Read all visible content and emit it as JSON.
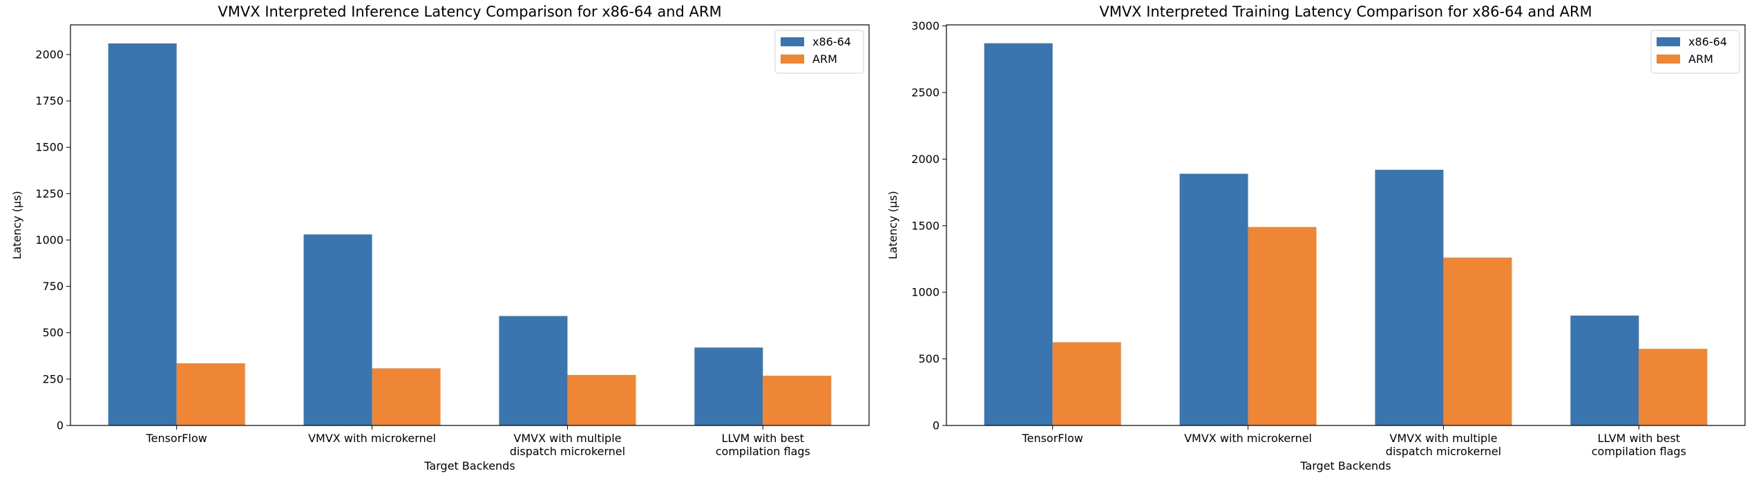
{
  "colors": {
    "x86": "#3a75b0",
    "arm": "#ef8636"
  },
  "chart_data": [
    {
      "type": "bar",
      "title": "VMVX Interpreted Inference Latency Comparison for x86-64 and ARM",
      "xlabel": "Target Backends",
      "ylabel": "Latency (μs)",
      "categories": [
        [
          "TensorFlow"
        ],
        [
          "VMVX with microkernel"
        ],
        [
          "VMVX with multiple",
          "dispatch microkernel"
        ],
        [
          "LLVM with best",
          "compilation flags"
        ]
      ],
      "series": [
        {
          "name": "x86-64",
          "values": [
            2060,
            1030,
            590,
            420
          ]
        },
        {
          "name": "ARM",
          "values": [
            335,
            308,
            272,
            268
          ]
        }
      ],
      "yticks": [
        0,
        250,
        500,
        750,
        1000,
        1250,
        1500,
        1750,
        2000
      ],
      "ylim": [
        0,
        2160
      ],
      "legend": "top-right"
    },
    {
      "type": "bar",
      "title": "VMVX Interpreted Training Latency Comparison for x86-64 and ARM",
      "xlabel": "Target Backends",
      "ylabel": "Latency (μs)",
      "categories": [
        [
          "TensorFlow"
        ],
        [
          "VMVX with microkernel"
        ],
        [
          "VMVX with multiple",
          "dispatch microkernel"
        ],
        [
          "LLVM with best",
          "compilation flags"
        ]
      ],
      "series": [
        {
          "name": "x86-64",
          "values": [
            2870,
            1890,
            1920,
            825
          ]
        },
        {
          "name": "ARM",
          "values": [
            625,
            1490,
            1260,
            575
          ]
        }
      ],
      "yticks": [
        0,
        500,
        1000,
        1500,
        2000,
        2500,
        3000
      ],
      "ylim": [
        0,
        3008
      ],
      "legend": "top-right"
    }
  ]
}
